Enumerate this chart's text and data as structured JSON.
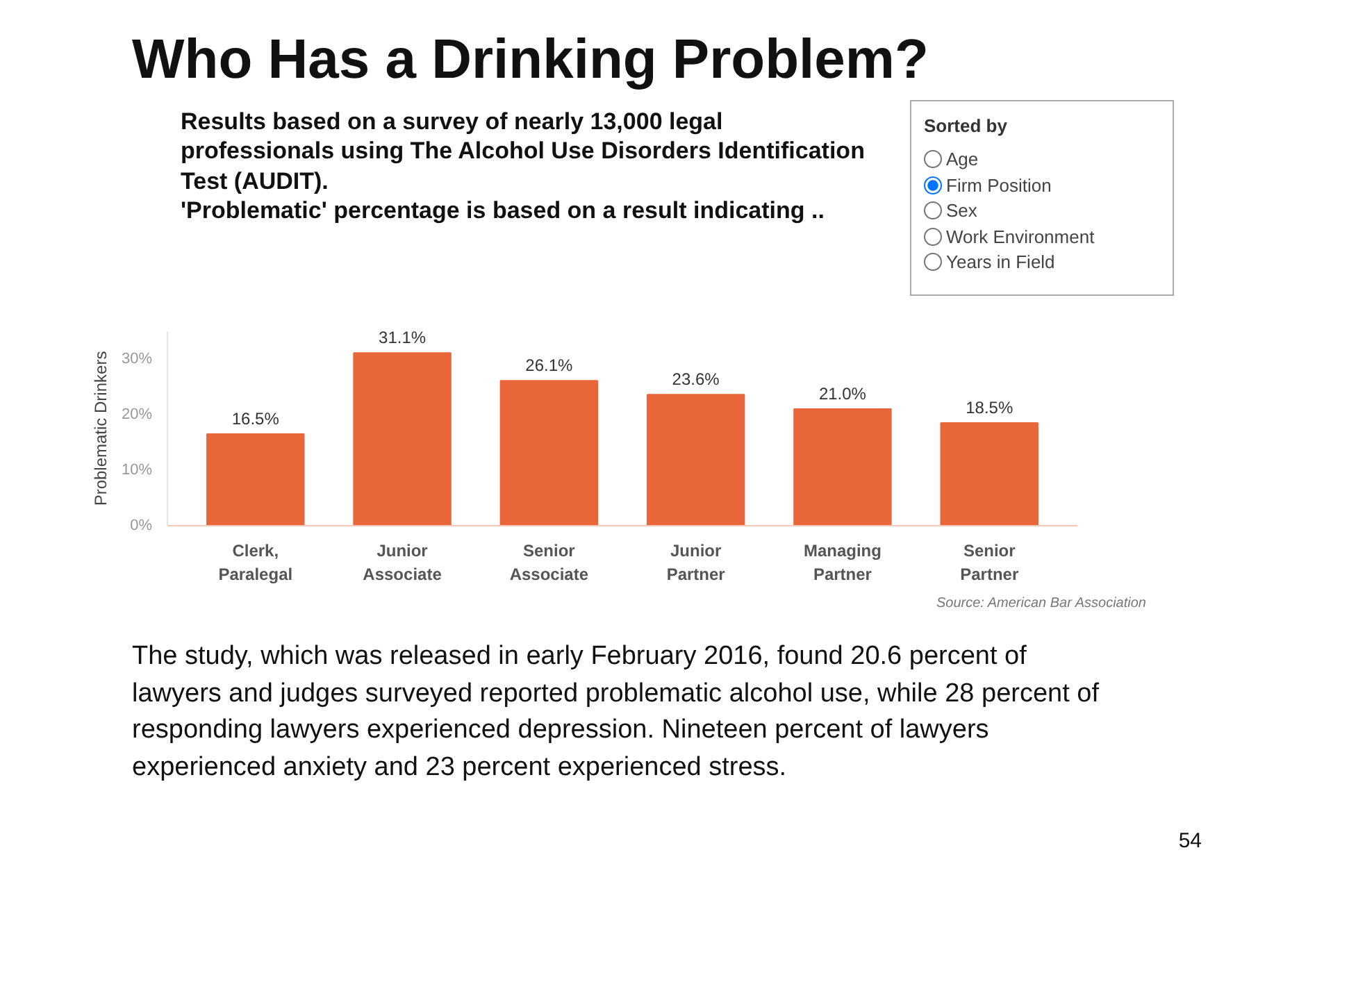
{
  "chart_data": {
    "type": "bar",
    "title": "Who Has a Drinking Problem?",
    "subtitle": "Results based on a survey of nearly 13,000 legal professionals using The Alcohol Use Disorders Identification Test (AUDIT).\n'Problematic' percentage is based on a result indicating ..",
    "ylabel": "Problematic Drinkers",
    "categories": [
      "Clerk,\nParalegal",
      "Junior\nAssociate",
      "Senior\nAssociate",
      "Junior\nPartner",
      "Managing\nPartner",
      "Senior\nPartner"
    ],
    "values": [
      16.5,
      31.1,
      26.1,
      23.6,
      21.0,
      18.5
    ],
    "value_labels": [
      "16.5%",
      "31.1%",
      "26.1%",
      "23.6%",
      "21.0%",
      "18.5%"
    ],
    "color": "#e8663a",
    "ylim": [
      0,
      35
    ],
    "yticks": [
      {
        "value": 0,
        "label": "0%"
      },
      {
        "value": 10,
        "label": "10%"
      },
      {
        "value": 20,
        "label": "20%"
      },
      {
        "value": 30,
        "label": "30%"
      }
    ],
    "annotations": [
      "Sorted by",
      "Age",
      "Firm Position",
      "Sex",
      "Work Environment",
      "Years in Field",
      "Source: American Bar Association",
      "The study, which was released in early February 2016, found 20.6 percent of lawyers and judges surveyed reported problematic alcohol use, while 28 percent of responding lawyers experienced depression. Nineteen percent of lawyers experienced anxiety and 23 percent experienced stress.",
      "54"
    ]
  }
}
